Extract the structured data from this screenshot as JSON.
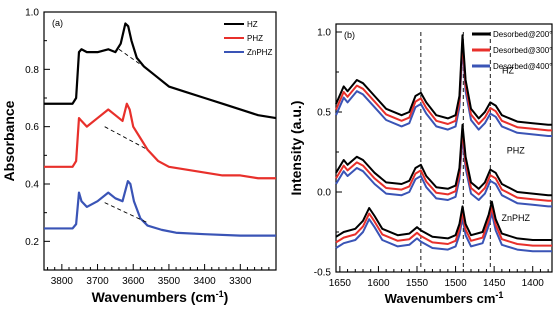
{
  "chart_data": [
    {
      "type": "line",
      "panel_label": "(a)",
      "xlabel": "Wavenumbers",
      "xlabel_unit": "(cm",
      "xlabel_sup": "-1",
      "xlabel_close": ")",
      "ylabel": "Absorbance",
      "xlim": [
        3850,
        3200
      ],
      "ylim": [
        0.1,
        1.0
      ],
      "x_ticks": [
        3800,
        3700,
        3600,
        3500,
        3400,
        3300
      ],
      "y_ticks": [
        "0.2",
        "0.4",
        "0.6",
        "0.8",
        "1.0"
      ],
      "legend_position": "top-right",
      "series": [
        {
          "name": "HZ",
          "color": "#000000",
          "points": [
            [
              3850,
              0.68
            ],
            [
              3770,
              0.68
            ],
            [
              3760,
              0.7
            ],
            [
              3752,
              0.86
            ],
            [
              3745,
              0.87
            ],
            [
              3730,
              0.86
            ],
            [
              3700,
              0.86
            ],
            [
              3670,
              0.87
            ],
            [
              3650,
              0.86
            ],
            [
              3635,
              0.89
            ],
            [
              3622,
              0.96
            ],
            [
              3614,
              0.95
            ],
            [
              3605,
              0.9
            ],
            [
              3590,
              0.84
            ],
            [
              3570,
              0.81
            ],
            [
              3540,
              0.78
            ],
            [
              3500,
              0.74
            ],
            [
              3450,
              0.72
            ],
            [
              3400,
              0.7
            ],
            [
              3350,
              0.68
            ],
            [
              3300,
              0.66
            ],
            [
              3250,
              0.64
            ],
            [
              3200,
              0.63
            ]
          ]
        },
        {
          "name": "PHZ",
          "color": "#e8302b",
          "points": [
            [
              3850,
              0.46
            ],
            [
              3770,
              0.46
            ],
            [
              3760,
              0.48
            ],
            [
              3752,
              0.63
            ],
            [
              3745,
              0.62
            ],
            [
              3730,
              0.6
            ],
            [
              3700,
              0.63
            ],
            [
              3670,
              0.66
            ],
            [
              3650,
              0.64
            ],
            [
              3630,
              0.62
            ],
            [
              3618,
              0.68
            ],
            [
              3610,
              0.66
            ],
            [
              3600,
              0.6
            ],
            [
              3580,
              0.56
            ],
            [
              3560,
              0.52
            ],
            [
              3530,
              0.48
            ],
            [
              3500,
              0.46
            ],
            [
              3450,
              0.45
            ],
            [
              3400,
              0.44
            ],
            [
              3350,
              0.43
            ],
            [
              3300,
              0.43
            ],
            [
              3250,
              0.42
            ],
            [
              3200,
              0.42
            ]
          ]
        },
        {
          "name": "ZnPHZ",
          "color": "#3a54b6",
          "points": [
            [
              3850,
              0.245
            ],
            [
              3770,
              0.245
            ],
            [
              3760,
              0.26
            ],
            [
              3752,
              0.37
            ],
            [
              3745,
              0.34
            ],
            [
              3730,
              0.32
            ],
            [
              3700,
              0.34
            ],
            [
              3670,
              0.37
            ],
            [
              3650,
              0.35
            ],
            [
              3630,
              0.34
            ],
            [
              3615,
              0.41
            ],
            [
              3608,
              0.4
            ],
            [
              3598,
              0.34
            ],
            [
              3580,
              0.28
            ],
            [
              3560,
              0.255
            ],
            [
              3520,
              0.24
            ],
            [
              3480,
              0.23
            ],
            [
              3400,
              0.225
            ],
            [
              3300,
              0.22
            ],
            [
              3250,
              0.22
            ],
            [
              3200,
              0.22
            ]
          ]
        }
      ],
      "baselines": [
        {
          "x": [
            3640,
            3560
          ],
          "y": [
            0.87,
            0.8
          ]
        },
        {
          "x": [
            3680,
            3560
          ],
          "y": [
            0.6,
            0.52
          ]
        },
        {
          "x": [
            3680,
            3560
          ],
          "y": [
            0.335,
            0.265
          ]
        }
      ]
    },
    {
      "type": "line",
      "panel_label": "(b)",
      "xlabel": "Wavenumbers cm",
      "xlabel_sup": "-1",
      "ylabel": "Intensity (a.u.)",
      "xlim": [
        1655,
        1375
      ],
      "ylim": [
        -0.5,
        1.05
      ],
      "x_ticks": [
        1650,
        1600,
        1550,
        1500,
        1450,
        1400
      ],
      "y_ticks": [
        "-0.5",
        "0.0",
        "0.5",
        "1.0"
      ],
      "legend_position": "top-right",
      "dashed_lines_x": [
        1545,
        1490,
        1455
      ],
      "annotations": [
        "HZ",
        "PHZ",
        "ZnPHZ"
      ],
      "series": [
        {
          "name": "Desorbed@200°",
          "color": "#000000",
          "offset": 0.0
        },
        {
          "name": "Desorbed@300°",
          "color": "#e8302b",
          "offset": -0.035
        },
        {
          "name": "Desorbed@400°",
          "color": "#3a54b6",
          "offset": -0.07
        }
      ],
      "base_profiles": [
        {
          "name": "HZ",
          "points": [
            [
              1655,
              0.55
            ],
            [
              1645,
              0.66
            ],
            [
              1640,
              0.63
            ],
            [
              1628,
              0.7
            ],
            [
              1620,
              0.68
            ],
            [
              1605,
              0.6
            ],
            [
              1590,
              0.52
            ],
            [
              1570,
              0.48
            ],
            [
              1560,
              0.5
            ],
            [
              1552,
              0.6
            ],
            [
              1545,
              0.62
            ],
            [
              1538,
              0.56
            ],
            [
              1525,
              0.48
            ],
            [
              1510,
              0.46
            ],
            [
              1500,
              0.48
            ],
            [
              1495,
              0.6
            ],
            [
              1491,
              0.98
            ],
            [
              1487,
              0.7
            ],
            [
              1480,
              0.52
            ],
            [
              1470,
              0.46
            ],
            [
              1462,
              0.5
            ],
            [
              1455,
              0.56
            ],
            [
              1448,
              0.54
            ],
            [
              1440,
              0.48
            ],
            [
              1420,
              0.44
            ],
            [
              1400,
              0.43
            ],
            [
              1380,
              0.42
            ],
            [
              1375,
              0.42
            ]
          ]
        },
        {
          "name": "PHZ",
          "points": [
            [
              1655,
              0.12
            ],
            [
              1645,
              0.2
            ],
            [
              1640,
              0.17
            ],
            [
              1628,
              0.22
            ],
            [
              1620,
              0.2
            ],
            [
              1605,
              0.12
            ],
            [
              1590,
              0.06
            ],
            [
              1570,
              0.05
            ],
            [
              1560,
              0.07
            ],
            [
              1552,
              0.15
            ],
            [
              1545,
              0.17
            ],
            [
              1538,
              0.1
            ],
            [
              1525,
              0.03
            ],
            [
              1510,
              0.02
            ],
            [
              1500,
              0.04
            ],
            [
              1495,
              0.15
            ],
            [
              1491,
              0.42
            ],
            [
              1487,
              0.22
            ],
            [
              1480,
              0.06
            ],
            [
              1470,
              0.02
            ],
            [
              1462,
              0.06
            ],
            [
              1455,
              0.14
            ],
            [
              1448,
              0.12
            ],
            [
              1440,
              0.05
            ],
            [
              1420,
              0.0
            ],
            [
              1400,
              -0.01
            ],
            [
              1380,
              -0.02
            ],
            [
              1375,
              -0.02
            ]
          ]
        },
        {
          "name": "ZnPHZ",
          "points": [
            [
              1655,
              -0.28
            ],
            [
              1645,
              -0.25
            ],
            [
              1630,
              -0.23
            ],
            [
              1620,
              -0.18
            ],
            [
              1612,
              -0.1
            ],
            [
              1605,
              -0.15
            ],
            [
              1595,
              -0.23
            ],
            [
              1575,
              -0.27
            ],
            [
              1560,
              -0.26
            ],
            [
              1550,
              -0.22
            ],
            [
              1545,
              -0.24
            ],
            [
              1530,
              -0.28
            ],
            [
              1510,
              -0.29
            ],
            [
              1500,
              -0.27
            ],
            [
              1495,
              -0.2
            ],
            [
              1491,
              -0.09
            ],
            [
              1487,
              -0.2
            ],
            [
              1480,
              -0.27
            ],
            [
              1465,
              -0.25
            ],
            [
              1457,
              -0.14
            ],
            [
              1453,
              -0.06
            ],
            [
              1448,
              -0.17
            ],
            [
              1440,
              -0.26
            ],
            [
              1420,
              -0.29
            ],
            [
              1400,
              -0.3
            ],
            [
              1375,
              -0.3
            ]
          ]
        }
      ]
    }
  ]
}
